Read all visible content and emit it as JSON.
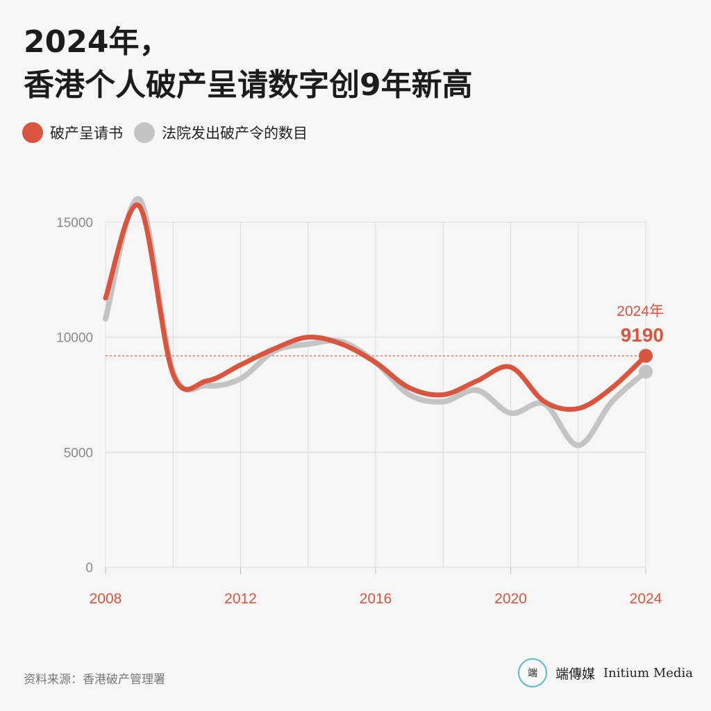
{
  "title": {
    "line1": "2024年，",
    "line2": "香港个人破产呈请数字创9年新高"
  },
  "legend": [
    {
      "label": "破产呈请书",
      "color": "#d9553d"
    },
    {
      "label": "法院发出破产令的数目",
      "color": "#c4c4c4"
    }
  ],
  "annotation": {
    "year_label": "2024年",
    "value_label": "9190"
  },
  "source": "资料来源：香港破产管理署",
  "brand": {
    "logo_glyph": "端",
    "name_cn": "端傳媒",
    "name_en": "Initium Media"
  },
  "chart_data": {
    "type": "line",
    "xlim": [
      2008,
      2024
    ],
    "ylim": [
      0,
      15000
    ],
    "x_ticks": [
      2008,
      2012,
      2016,
      2020,
      2024
    ],
    "y_ticks": [
      0,
      5000,
      10000,
      15000
    ],
    "x": [
      2008,
      2009,
      2010,
      2011,
      2012,
      2013,
      2014,
      2015,
      2016,
      2017,
      2018,
      2019,
      2020,
      2021,
      2022,
      2023,
      2024
    ],
    "series": [
      {
        "name": "法院发出破产令的数目",
        "color": "#c4c4c4",
        "values": [
          10800,
          16000,
          8500,
          7900,
          8200,
          9400,
          9700,
          9800,
          8900,
          7500,
          7200,
          7700,
          6700,
          7100,
          5300,
          7200,
          8500
        ]
      },
      {
        "name": "破产呈请书",
        "color": "#d9553d",
        "values": [
          11700,
          15700,
          8400,
          8100,
          8800,
          9500,
          10000,
          9700,
          8900,
          7800,
          7500,
          8100,
          8700,
          7200,
          6900,
          7800,
          9190
        ]
      }
    ],
    "reference_line": {
      "value": 9190,
      "color": "#d9553d",
      "style": "dotted"
    },
    "highlight_point": {
      "x": 2024,
      "value": 9190
    },
    "grid": true,
    "legend_position": "top-left"
  }
}
